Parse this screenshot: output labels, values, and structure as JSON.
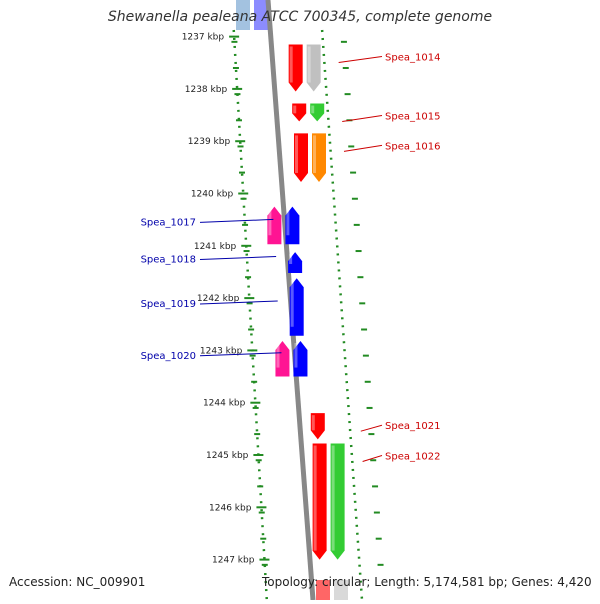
{
  "title": "Shewanella pealeana ATCC 700345, complete genome",
  "footer": {
    "accession": "Accession: NC_009901",
    "stats": "Topology: circular; Length: 5,174,581 bp; Genes: 4,420"
  },
  "ruler": {
    "unit": "kbp",
    "ticks": [
      {
        "label": "1237 kbp",
        "kbp": 1237
      },
      {
        "label": "1238 kbp",
        "kbp": 1238
      },
      {
        "label": "1239 kbp",
        "kbp": 1239
      },
      {
        "label": "1240 kbp",
        "kbp": 1240
      },
      {
        "label": "1241 kbp",
        "kbp": 1241
      },
      {
        "label": "1242 kbp",
        "kbp": 1242
      },
      {
        "label": "1243 kbp",
        "kbp": 1243
      },
      {
        "label": "1244 kbp",
        "kbp": 1244
      },
      {
        "label": "1245 kbp",
        "kbp": 1245
      },
      {
        "label": "1246 kbp",
        "kbp": 1246
      },
      {
        "label": "1247 kbp",
        "kbp": 1247
      }
    ]
  },
  "genes": [
    {
      "label": "Spea_1014",
      "strand": "plus",
      "start_kbp": 1237.15,
      "end_kbp": 1238.05,
      "color": "#ff0000",
      "label_color": "#cc0000"
    },
    {
      "label": "Spea_1015",
      "strand": "plus",
      "start_kbp": 1238.28,
      "end_kbp": 1238.62,
      "color": "#ff0000",
      "label_color": "#cc0000"
    },
    {
      "label": "Spea_1016",
      "strand": "plus",
      "start_kbp": 1238.85,
      "end_kbp": 1239.78,
      "color": "#ff0000",
      "label_color": "#cc0000"
    },
    {
      "label": "Spea_1017",
      "strand": "minus",
      "start_kbp": 1240.25,
      "end_kbp": 1240.97,
      "color": "#0000ff",
      "label_color": "#0000aa"
    },
    {
      "label": "Spea_1018",
      "strand": "minus",
      "start_kbp": 1241.12,
      "end_kbp": 1241.52,
      "color": "#0000ff",
      "label_color": "#0000aa"
    },
    {
      "label": "Spea_1019",
      "strand": "minus",
      "start_kbp": 1241.62,
      "end_kbp": 1242.72,
      "color": "#0000ff",
      "label_color": "#0000aa"
    },
    {
      "label": "Spea_1020",
      "strand": "minus",
      "start_kbp": 1242.82,
      "end_kbp": 1243.5,
      "color": "#0000ff",
      "label_color": "#0000aa"
    },
    {
      "label": "Spea_1021",
      "strand": "plus",
      "start_kbp": 1244.2,
      "end_kbp": 1244.7,
      "color": "#ff0000",
      "label_color": "#cc0000"
    },
    {
      "label": "Spea_1022",
      "strand": "plus",
      "start_kbp": 1244.78,
      "end_kbp": 1247.0,
      "color": "#ff0000",
      "label_color": "#cc0000"
    }
  ],
  "cogs": [
    {
      "strand": "plus",
      "start_kbp": 1237.15,
      "end_kbp": 1238.05,
      "color": "#c0c0c0"
    },
    {
      "strand": "plus",
      "start_kbp": 1238.28,
      "end_kbp": 1238.62,
      "color": "#33cc33"
    },
    {
      "strand": "plus",
      "start_kbp": 1238.85,
      "end_kbp": 1239.78,
      "color": "#ff8800"
    },
    {
      "strand": "minus",
      "start_kbp": 1240.25,
      "end_kbp": 1240.97,
      "color": "#ff1493"
    },
    {
      "strand": "minus",
      "start_kbp": 1242.82,
      "end_kbp": 1243.5,
      "color": "#ff1493"
    },
    {
      "strand": "plus",
      "start_kbp": 1244.78,
      "end_kbp": 1247.0,
      "color": "#33cc33"
    }
  ],
  "colors": {
    "backbone": "#888888",
    "ruler_dots": "#228b22",
    "plus_gene": "#ff0000",
    "minus_gene": "#0000ff"
  }
}
